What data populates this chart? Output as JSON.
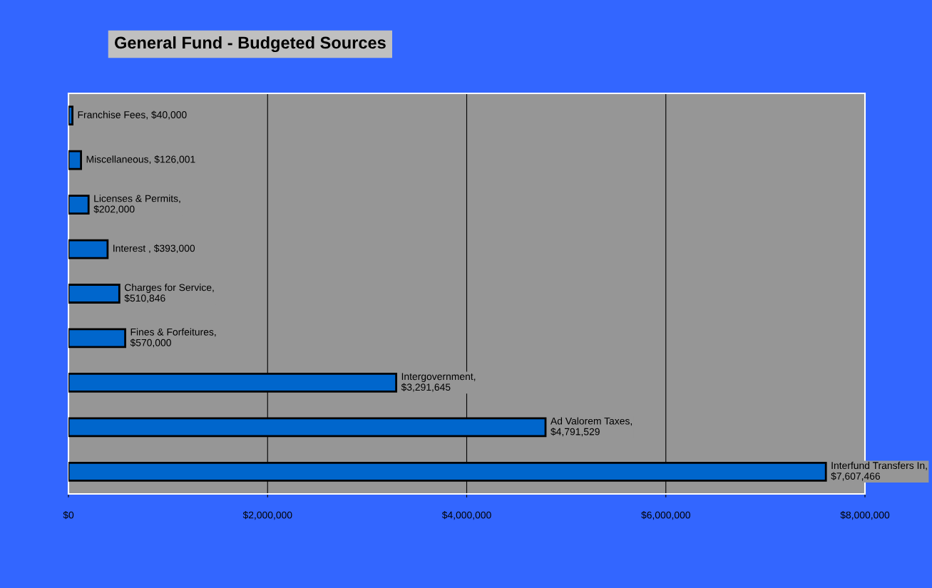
{
  "chart_data": {
    "type": "bar",
    "orientation": "horizontal",
    "title": "General Fund - Budgeted Sources",
    "categories": [
      null,
      null,
      null,
      null,
      null,
      null,
      null,
      null,
      null
    ],
    "values": [
      40000,
      126001,
      202000,
      393000,
      510846,
      570000,
      3291645,
      4791529,
      7607466
    ],
    "value_labels": [
      "Franchise Fees, $40,000",
      "Miscellaneous, $126,001",
      "Licenses & Permits,\n$202,000",
      "Interest , $393,000",
      "Charges for Service,\n$510,846",
      "Fines & Forfeitures,\n$570,000",
      "Intergovernment,\n$3,291,645",
      "Ad Valorem Taxes,\n$4,791,529",
      "Interfund Transfers In,\n$7,607,466"
    ],
    "color": "#0066cc",
    "xlim": [
      0,
      8000000
    ],
    "xticks": [
      {
        "value": 0,
        "label": "$0"
      },
      {
        "value": 2000000,
        "label": "$2,000,000"
      },
      {
        "value": 4000000,
        "label": "$4,000,000"
      },
      {
        "value": 6000000,
        "label": "$6,000,000"
      },
      {
        "value": 8000000,
        "label": "$8,000,000"
      }
    ],
    "grid": "x"
  }
}
